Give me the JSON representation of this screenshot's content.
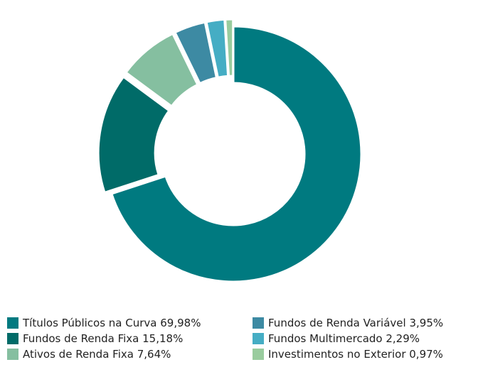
{
  "chart_data": {
    "type": "donut",
    "categories": [
      "Títulos Públicos na Curva",
      "Fundos de Renda Fixa",
      "Ativos de Renda Fixa",
      "Fundos de Renda Variável",
      "Fundos Multimercado",
      "Investimentos no Exterior"
    ],
    "values": [
      69.98,
      15.18,
      7.64,
      3.95,
      2.29,
      0.97
    ],
    "value_labels": [
      "69,98%",
      "15,18%",
      "7,64%",
      "3,95%",
      "2,29%",
      "0,97%"
    ],
    "colors": [
      "#007a80",
      "#006b68",
      "#85bfa0",
      "#3d8aa3",
      "#45adc4",
      "#99cc9e"
    ]
  }
}
